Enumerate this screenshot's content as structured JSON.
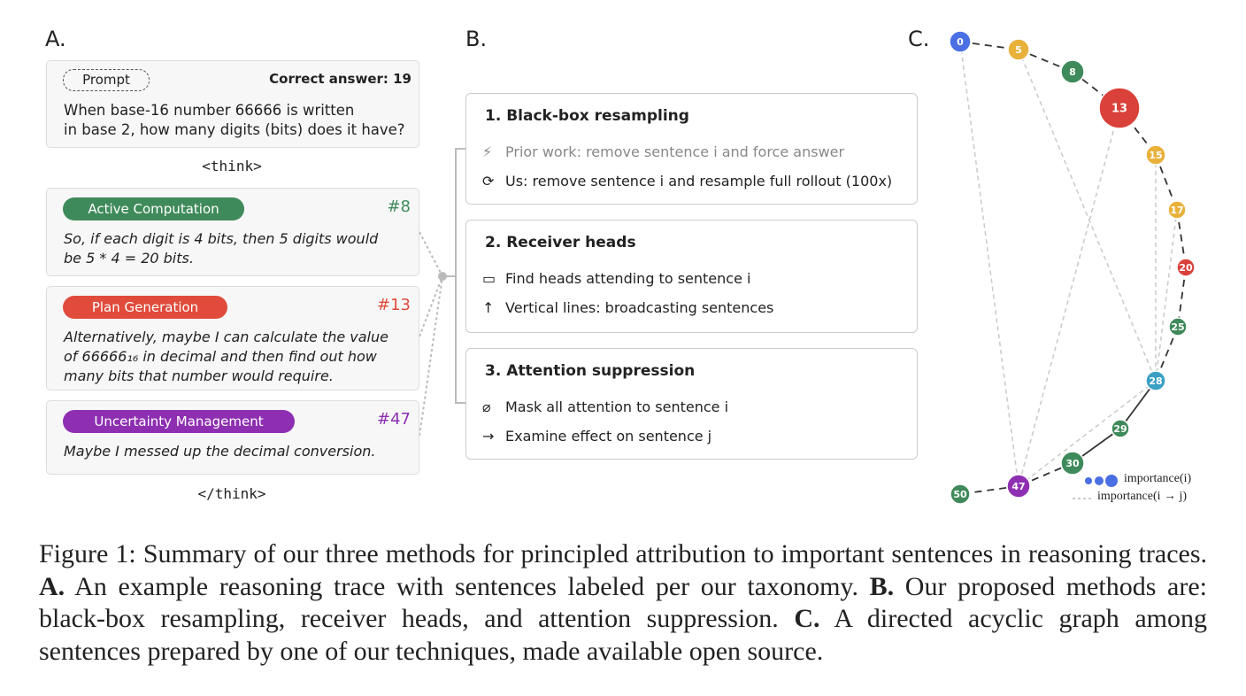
{
  "panel_a": {
    "label": "A.",
    "prompt": {
      "tag": "Prompt",
      "answer": "Correct answer: 19",
      "lines": [
        "When base-16 number 66666 is written",
        "in base 2, how many digits (bits) does it have?"
      ]
    },
    "think_open": "<think>",
    "sentences": [
      {
        "tag": "Active Computation",
        "id": "#8",
        "color": "#3f8a5a",
        "lines": [
          "So, if each digit is 4 bits, then 5 digits would",
          "be 5 * 4 = 20 bits."
        ]
      },
      {
        "tag": "Plan Generation",
        "id": "#13",
        "color": "#e04b3b",
        "lines": [
          "Alternatively, maybe I can calculate the value",
          "of 66666₁₆ in decimal and then find out how",
          "many bits that number would require."
        ]
      },
      {
        "tag": "Uncertainty Management",
        "id": "#47",
        "color": "#8e2fb2",
        "lines": [
          "Maybe I messed up the decimal conversion."
        ]
      }
    ],
    "think_close": "</think>"
  },
  "panel_b": {
    "label": "B.",
    "methods": [
      {
        "title": "1. Black-box resampling",
        "lines": [
          "Prior work: remove sentence i and force answer",
          "Us: remove sentence i and resample full rollout (100x)"
        ]
      },
      {
        "title": "2. Receiver heads",
        "lines": [
          "Find heads attending to sentence i",
          "Vertical lines: broadcasting sentences"
        ]
      },
      {
        "title": "3. Attention suppression",
        "lines": [
          "Mask all attention to sentence i",
          "Examine effect on sentence j"
        ]
      }
    ]
  },
  "panel_c": {
    "label": "C.",
    "nodes": [
      "0",
      "5",
      "8",
      "13",
      "15",
      "17",
      "20",
      "25",
      "28",
      "29",
      "30",
      "47",
      "50"
    ],
    "legend": [
      "importance(i)",
      "importance(i → j)"
    ]
  },
  "caption": [
    "Figure 1: Summary of our three methods for principled attribution to important sentences in reasoning traces. ",
    "A.",
    " An example reasoning trace with sentences labeled per our taxonomy. ",
    "B.",
    " Our proposed methods are: black-box resampling, receiver heads, and attention suppression. ",
    "C.",
    " A directed acyclic graph among sentences prepared by one of our techniques, made available open source."
  ]
}
